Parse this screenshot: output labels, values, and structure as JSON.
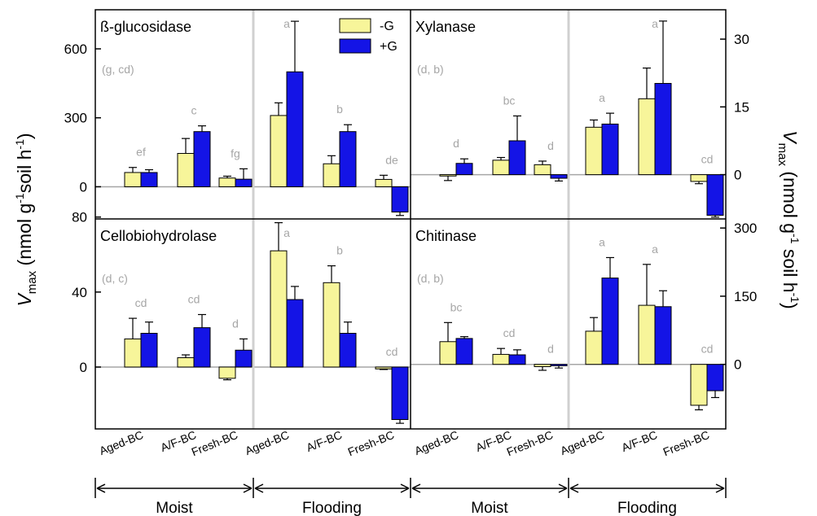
{
  "colors": {
    "minus_g": "#f7f59a",
    "plus_g": "#1414e6",
    "letter_gray": "#a6a6a6",
    "zero_line": "#a6a6a6",
    "divider": "#d0d0d0"
  },
  "legend": {
    "minus_g": "-G",
    "plus_g": "+G"
  },
  "axes": {
    "left_label_main": "V",
    "left_label_sub": "max",
    "left_label_rest": " (nmol g",
    "left_label_sup1": "-1",
    "left_label_mid": "soil h",
    "left_label_sup2": "-1",
    "left_label_end": ")",
    "right_label_main": "V",
    "right_label_sub": "max",
    "right_label_rest": " (nmol g",
    "right_label_sup1": "-1",
    "right_label_mid": " soil h",
    "right_label_sup2": "-1",
    "right_label_end": ")"
  },
  "x_categories": [
    "Aged-BC",
    "A/F-BC",
    "Fresh-BC",
    "Aged-BC",
    "A/F-BC",
    "Fresh-BC"
  ],
  "groups": [
    "Moist",
    "Flooding"
  ],
  "chart_data": [
    {
      "type": "bar",
      "title": "ß-glucosidase",
      "stats": "(g, cd)",
      "categories": [
        "Aged-BC",
        "A/F-BC",
        "Fresh-BC",
        "Aged-BC",
        "A/F-BC",
        "Fresh-BC"
      ],
      "groups": [
        "Moist",
        "Flooding"
      ],
      "series": [
        {
          "name": "-G",
          "values": [
            62,
            145,
            38,
            310,
            100,
            32
          ],
          "errors": [
            22,
            65,
            8,
            55,
            35,
            18
          ]
        },
        {
          "name": "+G",
          "values": [
            62,
            240,
            33,
            500,
            240,
            -110
          ],
          "errors": [
            12,
            25,
            45,
            220,
            30,
            15
          ]
        }
      ],
      "letters": [
        "ef",
        "c",
        "fg",
        "a",
        "b",
        "de"
      ],
      "yticks": [
        0,
        300,
        600
      ],
      "ylim": [
        -140,
        770
      ],
      "axis_side": "left"
    },
    {
      "type": "bar",
      "title": "Xylanase",
      "stats": "(d, b)",
      "categories": [
        "Aged-BC",
        "A/F-BC",
        "Fresh-BC",
        "Aged-BC",
        "A/F-BC",
        "Fresh-BC"
      ],
      "groups": [
        "Moist",
        "Flooding"
      ],
      "series": [
        {
          "name": "-G",
          "values": [
            -0.3,
            3.2,
            2.2,
            10.5,
            16.8,
            -1.5
          ],
          "errors": [
            1.0,
            0.6,
            0.8,
            1.6,
            6.8,
            0.5
          ]
        },
        {
          "name": "+G",
          "values": [
            2.5,
            7.5,
            -0.8,
            11.2,
            20.2,
            -9.0
          ],
          "errors": [
            1.0,
            5.5,
            0.6,
            2.4,
            13.8,
            0.4
          ]
        }
      ],
      "letters": [
        "d",
        "bc",
        "d",
        "a",
        "a",
        "cd"
      ],
      "yticks": [
        0,
        15,
        30
      ],
      "ylim": [
        -9.8,
        36.5
      ],
      "axis_side": "right"
    },
    {
      "type": "bar",
      "title": "Cellobiohydrolase",
      "stats": "(d, c)",
      "categories": [
        "Aged-BC",
        "A/F-BC",
        "Fresh-BC",
        "Aged-BC",
        "A/F-BC",
        "Fresh-BC"
      ],
      "groups": [
        "Moist",
        "Flooding"
      ],
      "series": [
        {
          "name": "-G",
          "values": [
            15,
            5,
            -6,
            62,
            45,
            -1
          ],
          "errors": [
            11,
            1.5,
            0.8,
            15,
            9,
            0.3
          ]
        },
        {
          "name": "+G",
          "values": [
            18,
            21,
            9,
            36,
            18,
            -28
          ],
          "errors": [
            6,
            7,
            6,
            7,
            6,
            2
          ]
        }
      ],
      "letters": [
        "cd",
        "cd",
        "d",
        "a",
        "b",
        "cd"
      ],
      "yticks": [
        0,
        40,
        80
      ],
      "ylim": [
        -33,
        79
      ],
      "axis_side": "left"
    },
    {
      "type": "bar",
      "title": "Chitinase",
      "stats": "(d, b)",
      "categories": [
        "Aged-BC",
        "A/F-BC",
        "Fresh-BC",
        "Aged-BC",
        "A/F-BC",
        "Fresh-BC"
      ],
      "groups": [
        "Moist",
        "Flooding"
      ],
      "series": [
        {
          "name": "-G",
          "values": [
            50,
            22,
            -5,
            73,
            130,
            -90
          ],
          "errors": [
            42,
            13,
            8,
            30,
            90,
            10
          ]
        },
        {
          "name": "+G",
          "values": [
            57,
            21,
            -3,
            190,
            127,
            -58
          ],
          "errors": [
            4,
            11,
            5,
            45,
            35,
            15
          ]
        }
      ],
      "letters": [
        "bc",
        "cd",
        "d",
        "a",
        "a",
        "cd"
      ],
      "yticks": [
        0,
        150,
        300
      ],
      "ylim": [
        -142,
        320
      ],
      "axis_side": "right"
    }
  ]
}
